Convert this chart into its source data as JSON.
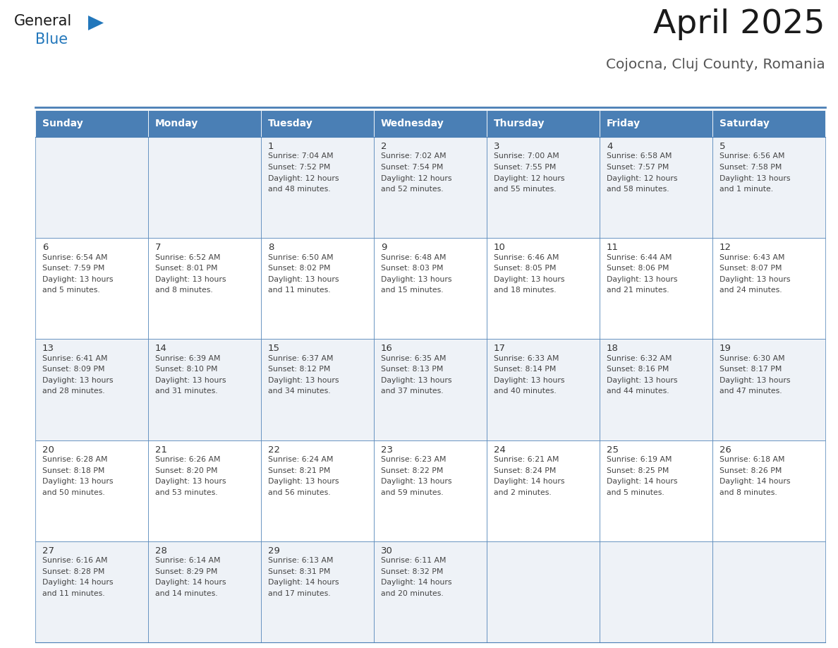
{
  "title": "April 2025",
  "subtitle": "Cojocna, Cluj County, Romania",
  "header_bg_color": "#4a7fb5",
  "header_text_color": "#ffffff",
  "weekdays": [
    "Sunday",
    "Monday",
    "Tuesday",
    "Wednesday",
    "Thursday",
    "Friday",
    "Saturday"
  ],
  "cell_bg_even": "#eef2f7",
  "cell_bg_odd": "#ffffff",
  "cell_border_color": "#4a7fb5",
  "text_color": "#444444",
  "day_num_color": "#333333",
  "days": [
    {
      "day": 1,
      "col": 2,
      "row": 0,
      "sunrise": "7:04 AM",
      "sunset": "7:52 PM",
      "daylight": "12 hours and 48 minutes."
    },
    {
      "day": 2,
      "col": 3,
      "row": 0,
      "sunrise": "7:02 AM",
      "sunset": "7:54 PM",
      "daylight": "12 hours and 52 minutes."
    },
    {
      "day": 3,
      "col": 4,
      "row": 0,
      "sunrise": "7:00 AM",
      "sunset": "7:55 PM",
      "daylight": "12 hours and 55 minutes."
    },
    {
      "day": 4,
      "col": 5,
      "row": 0,
      "sunrise": "6:58 AM",
      "sunset": "7:57 PM",
      "daylight": "12 hours and 58 minutes."
    },
    {
      "day": 5,
      "col": 6,
      "row": 0,
      "sunrise": "6:56 AM",
      "sunset": "7:58 PM",
      "daylight": "13 hours and 1 minute."
    },
    {
      "day": 6,
      "col": 0,
      "row": 1,
      "sunrise": "6:54 AM",
      "sunset": "7:59 PM",
      "daylight": "13 hours and 5 minutes."
    },
    {
      "day": 7,
      "col": 1,
      "row": 1,
      "sunrise": "6:52 AM",
      "sunset": "8:01 PM",
      "daylight": "13 hours and 8 minutes."
    },
    {
      "day": 8,
      "col": 2,
      "row": 1,
      "sunrise": "6:50 AM",
      "sunset": "8:02 PM",
      "daylight": "13 hours and 11 minutes."
    },
    {
      "day": 9,
      "col": 3,
      "row": 1,
      "sunrise": "6:48 AM",
      "sunset": "8:03 PM",
      "daylight": "13 hours and 15 minutes."
    },
    {
      "day": 10,
      "col": 4,
      "row": 1,
      "sunrise": "6:46 AM",
      "sunset": "8:05 PM",
      "daylight": "13 hours and 18 minutes."
    },
    {
      "day": 11,
      "col": 5,
      "row": 1,
      "sunrise": "6:44 AM",
      "sunset": "8:06 PM",
      "daylight": "13 hours and 21 minutes."
    },
    {
      "day": 12,
      "col": 6,
      "row": 1,
      "sunrise": "6:43 AM",
      "sunset": "8:07 PM",
      "daylight": "13 hours and 24 minutes."
    },
    {
      "day": 13,
      "col": 0,
      "row": 2,
      "sunrise": "6:41 AM",
      "sunset": "8:09 PM",
      "daylight": "13 hours and 28 minutes."
    },
    {
      "day": 14,
      "col": 1,
      "row": 2,
      "sunrise": "6:39 AM",
      "sunset": "8:10 PM",
      "daylight": "13 hours and 31 minutes."
    },
    {
      "day": 15,
      "col": 2,
      "row": 2,
      "sunrise": "6:37 AM",
      "sunset": "8:12 PM",
      "daylight": "13 hours and 34 minutes."
    },
    {
      "day": 16,
      "col": 3,
      "row": 2,
      "sunrise": "6:35 AM",
      "sunset": "8:13 PM",
      "daylight": "13 hours and 37 minutes."
    },
    {
      "day": 17,
      "col": 4,
      "row": 2,
      "sunrise": "6:33 AM",
      "sunset": "8:14 PM",
      "daylight": "13 hours and 40 minutes."
    },
    {
      "day": 18,
      "col": 5,
      "row": 2,
      "sunrise": "6:32 AM",
      "sunset": "8:16 PM",
      "daylight": "13 hours and 44 minutes."
    },
    {
      "day": 19,
      "col": 6,
      "row": 2,
      "sunrise": "6:30 AM",
      "sunset": "8:17 PM",
      "daylight": "13 hours and 47 minutes."
    },
    {
      "day": 20,
      "col": 0,
      "row": 3,
      "sunrise": "6:28 AM",
      "sunset": "8:18 PM",
      "daylight": "13 hours and 50 minutes."
    },
    {
      "day": 21,
      "col": 1,
      "row": 3,
      "sunrise": "6:26 AM",
      "sunset": "8:20 PM",
      "daylight": "13 hours and 53 minutes."
    },
    {
      "day": 22,
      "col": 2,
      "row": 3,
      "sunrise": "6:24 AM",
      "sunset": "8:21 PM",
      "daylight": "13 hours and 56 minutes."
    },
    {
      "day": 23,
      "col": 3,
      "row": 3,
      "sunrise": "6:23 AM",
      "sunset": "8:22 PM",
      "daylight": "13 hours and 59 minutes."
    },
    {
      "day": 24,
      "col": 4,
      "row": 3,
      "sunrise": "6:21 AM",
      "sunset": "8:24 PM",
      "daylight": "14 hours and 2 minutes."
    },
    {
      "day": 25,
      "col": 5,
      "row": 3,
      "sunrise": "6:19 AM",
      "sunset": "8:25 PM",
      "daylight": "14 hours and 5 minutes."
    },
    {
      "day": 26,
      "col": 6,
      "row": 3,
      "sunrise": "6:18 AM",
      "sunset": "8:26 PM",
      "daylight": "14 hours and 8 minutes."
    },
    {
      "day": 27,
      "col": 0,
      "row": 4,
      "sunrise": "6:16 AM",
      "sunset": "8:28 PM",
      "daylight": "14 hours and 11 minutes."
    },
    {
      "day": 28,
      "col": 1,
      "row": 4,
      "sunrise": "6:14 AM",
      "sunset": "8:29 PM",
      "daylight": "14 hours and 14 minutes."
    },
    {
      "day": 29,
      "col": 2,
      "row": 4,
      "sunrise": "6:13 AM",
      "sunset": "8:31 PM",
      "daylight": "14 hours and 17 minutes."
    },
    {
      "day": 30,
      "col": 3,
      "row": 4,
      "sunrise": "6:11 AM",
      "sunset": "8:32 PM",
      "daylight": "14 hours and 20 minutes."
    }
  ],
  "logo_color1": "#1a1a1a",
  "logo_color2": "#2277bb",
  "logo_triangle_color": "#2277bb",
  "fig_width": 11.88,
  "fig_height": 9.18,
  "dpi": 100
}
